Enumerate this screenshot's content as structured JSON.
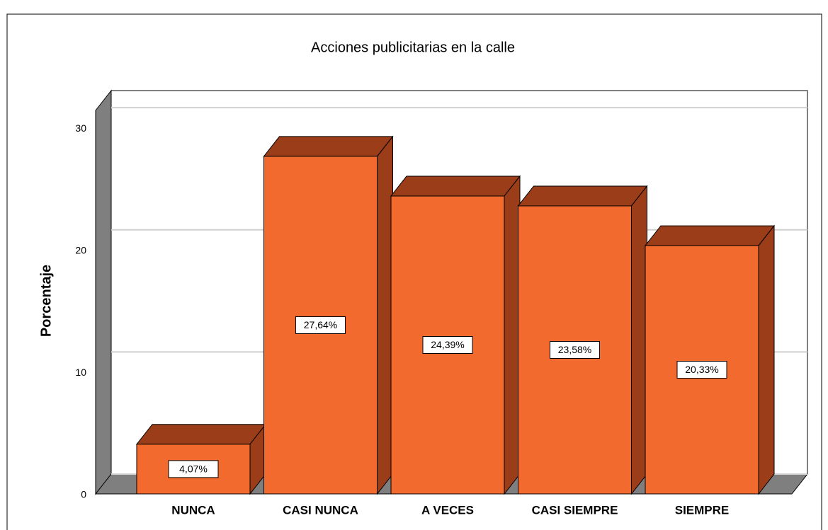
{
  "chart_data": {
    "type": "bar3d",
    "title": "Acciones publicitarias en la calle",
    "y_label": "Porcentaje",
    "categories": [
      "NUNCA",
      "CASI NUNCA",
      "A VECES",
      "CASI SIEMPRE",
      "SIEMPRE"
    ],
    "values": [
      4.07,
      27.64,
      24.39,
      23.58,
      20.33
    ],
    "value_labels": [
      "4,07%",
      "27,64%",
      "24,39%",
      "23,58%",
      "20,33%"
    ],
    "color": "#f26a2e",
    "ylim": [
      0,
      31.4
    ],
    "yticks": [
      0,
      10,
      20,
      30
    ],
    "grid": true
  }
}
